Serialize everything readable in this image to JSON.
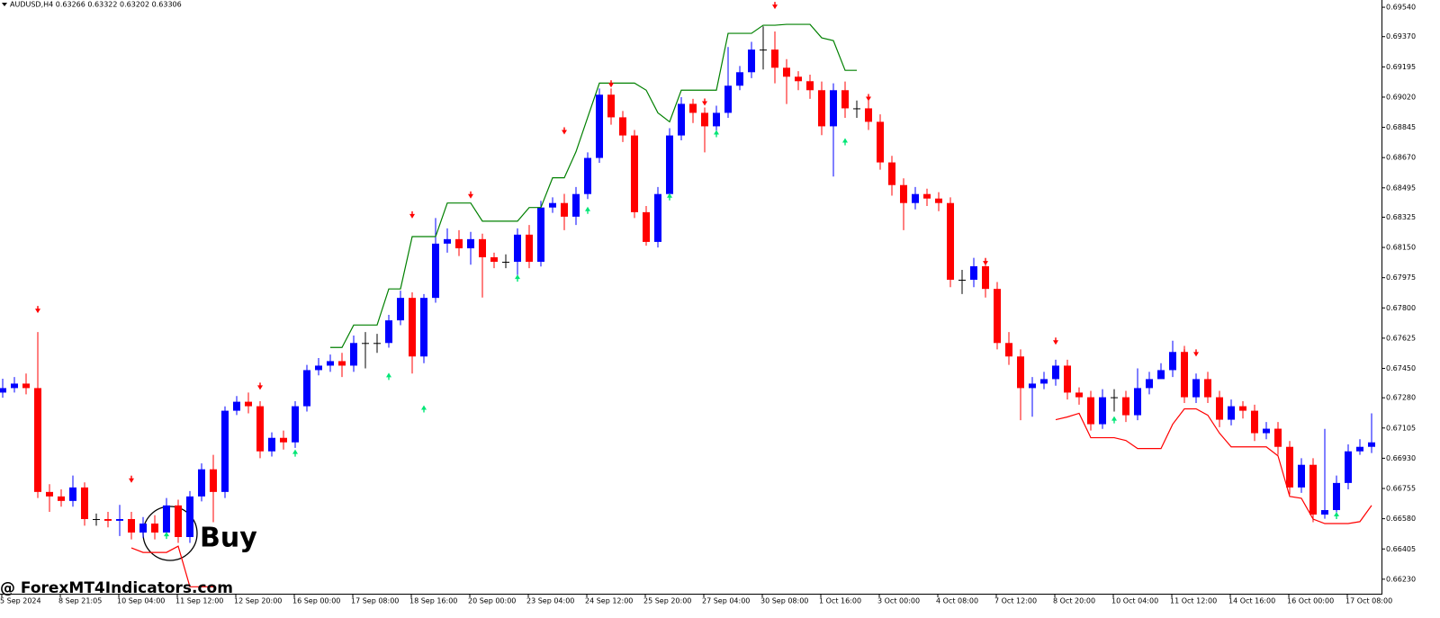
{
  "chart_data": {
    "type": "candlestick",
    "header": "AUDUSD,H4  0.63266 0.63322 0.63202 0.63306",
    "annotation": "Buy",
    "watermark": "@ ForexMT4Indicators.com",
    "up_color": "#0000ff",
    "down_color": "#ff0000",
    "ylim": [
      0.66146,
      0.69582
    ],
    "yticks": [
      {
        "value": 0.6954,
        "label": "0.69540"
      },
      {
        "value": 0.6937,
        "label": "0.69370"
      },
      {
        "value": 0.69195,
        "label": "0.69195"
      },
      {
        "value": 0.6902,
        "label": "0.69020"
      },
      {
        "value": 0.68845,
        "label": "0.68845"
      },
      {
        "value": 0.6867,
        "label": "0.68670"
      },
      {
        "value": 0.68495,
        "label": "0.68495"
      },
      {
        "value": 0.68325,
        "label": "0.68325"
      },
      {
        "value": 0.6815,
        "label": "0.68150"
      },
      {
        "value": 0.67975,
        "label": "0.67975"
      },
      {
        "value": 0.678,
        "label": "0.67800"
      },
      {
        "value": 0.67625,
        "label": "0.67625"
      },
      {
        "value": 0.6745,
        "label": "0.67450"
      },
      {
        "value": 0.6728,
        "label": "0.67280"
      },
      {
        "value": 0.67105,
        "label": "0.67105"
      },
      {
        "value": 0.6693,
        "label": "0.66930"
      },
      {
        "value": 0.66755,
        "label": "0.66755"
      },
      {
        "value": 0.6658,
        "label": "0.66580"
      },
      {
        "value": 0.66405,
        "label": "0.66405"
      },
      {
        "value": 0.6623,
        "label": "0.66230"
      }
    ],
    "x_labels": [
      "5 Sep 2024",
      "8 Sep 21:05",
      "10 Sep 04:00",
      "11 Sep 12:00",
      "12 Sep 20:00",
      "16 Sep 00:00",
      "17 Sep 08:00",
      "18 Sep 16:00",
      "20 Sep 00:00",
      "23 Sep 04:00",
      "24 Sep 12:00",
      "25 Sep 20:00",
      "27 Sep 04:00",
      "30 Sep 08:00",
      "1 Oct 16:00",
      "3 Oct 00:00",
      "4 Oct 08:00",
      "7 Oct 12:00",
      "8 Oct 20:00",
      "10 Oct 04:00",
      "11 Oct 12:00",
      "14 Oct 16:00",
      "16 Oct 00:00",
      "17 Oct 08:00"
    ],
    "open": [
      0.6731,
      0.67336,
      0.67362,
      0.67336,
      0.66735,
      0.66709,
      0.66683,
      0.66761,
      0.66578,
      0.66578,
      0.66568,
      0.66578,
      0.665,
      0.66552,
      0.665,
      0.66657,
      0.66474,
      0.66709,
      0.66866,
      0.66735,
      0.67205,
      0.67257,
      0.67231,
      0.6697,
      0.67048,
      0.67022,
      0.67231,
      0.6744,
      0.67466,
      0.67492,
      0.67466,
      0.67597,
      0.67597,
      0.67597,
      0.67728,
      0.67858,
      0.67519,
      0.67858,
      0.68172,
      0.68198,
      0.68145,
      0.68198,
      0.68093,
      0.68067,
      0.68067,
      0.68224,
      0.68067,
      0.68381,
      0.68407,
      0.68328,
      0.68459,
      0.68668,
      0.69034,
      0.68903,
      0.68798,
      0.68354,
      0.68182,
      0.68459,
      0.68798,
      0.68981,
      0.68929,
      0.68851,
      0.68929,
      0.69086,
      0.69164,
      0.69295,
      0.69295,
      0.6919,
      0.69138,
      0.69112,
      0.6906,
      0.68851,
      0.6906,
      0.68955,
      0.68955,
      0.68877,
      0.68642,
      0.68511,
      0.68407,
      0.68459,
      0.68433,
      0.68407,
      0.67963,
      0.67963,
      0.68041,
      0.6791,
      0.67597,
      0.67519,
      0.67336,
      0.67362,
      0.67388,
      0.67466,
      0.6731,
      0.67283,
      0.67127,
      0.67283,
      0.67283,
      0.67179,
      0.67336,
      0.67388,
      0.6744,
      0.67545,
      0.67283,
      0.67388,
      0.67283,
      0.67153,
      0.67231,
      0.67205,
      0.67075,
      0.67101,
      0.66996,
      0.66761,
      0.66892,
      0.66604,
      0.6663,
      0.66787,
      0.6697,
      0.66996
    ],
    "high": [
      0.6739,
      0.674,
      0.6742,
      0.6766,
      0.6678,
      0.6675,
      0.6683,
      0.6679,
      0.6661,
      0.6662,
      0.6666,
      0.6662,
      0.6659,
      0.666,
      0.667,
      0.6669,
      0.6674,
      0.669,
      0.6695,
      0.6723,
      0.6729,
      0.6731,
      0.6726,
      0.6708,
      0.6709,
      0.6726,
      0.6747,
      0.6751,
      0.6753,
      0.6754,
      0.6764,
      0.6766,
      0.6765,
      0.6776,
      0.679,
      0.6789,
      0.6788,
      0.6832,
      0.6826,
      0.6825,
      0.6824,
      0.6823,
      0.6812,
      0.6811,
      0.6826,
      0.6828,
      0.6842,
      0.6844,
      0.6846,
      0.685,
      0.687,
      0.6907,
      0.6907,
      0.6894,
      0.6883,
      0.6839,
      0.685,
      0.6884,
      0.6902,
      0.6901,
      0.6896,
      0.6897,
      0.6931,
      0.692,
      0.6934,
      0.6943,
      0.694,
      0.6924,
      0.6917,
      0.6915,
      0.6911,
      0.691,
      0.6911,
      0.69,
      0.69,
      0.6892,
      0.6868,
      0.6855,
      0.685,
      0.6849,
      0.6847,
      0.6844,
      0.6802,
      0.6809,
      0.6809,
      0.6795,
      0.6766,
      0.6756,
      0.674,
      0.6743,
      0.675,
      0.675,
      0.6734,
      0.6732,
      0.6733,
      0.6733,
      0.6732,
      0.6745,
      0.6743,
      0.6748,
      0.6761,
      0.6758,
      0.6742,
      0.6743,
      0.6732,
      0.6727,
      0.6726,
      0.6724,
      0.6714,
      0.6714,
      0.6703,
      0.6693,
      0.6693,
      0.671,
      0.6683,
      0.6701,
      0.6704,
      0.6719
    ],
    "low": [
      0.6728,
      0.6731,
      0.673,
      0.667,
      0.6662,
      0.6665,
      0.6665,
      0.6654,
      0.6654,
      0.6653,
      0.6648,
      0.6646,
      0.6647,
      0.6646,
      0.6647,
      0.6644,
      0.6644,
      0.6668,
      0.6656,
      0.667,
      0.6718,
      0.6719,
      0.6693,
      0.6694,
      0.6698,
      0.6699,
      0.672,
      0.6741,
      0.6743,
      0.674,
      0.6743,
      0.6745,
      0.6754,
      0.6757,
      0.677,
      0.6742,
      0.6748,
      0.6783,
      0.6812,
      0.681,
      0.6805,
      0.6786,
      0.6803,
      0.6803,
      0.6798,
      0.6803,
      0.6804,
      0.6835,
      0.6825,
      0.6828,
      0.6843,
      0.6864,
      0.6886,
      0.6876,
      0.6832,
      0.6816,
      0.6815,
      0.6843,
      0.6877,
      0.6887,
      0.687,
      0.688,
      0.689,
      0.6906,
      0.6913,
      0.6918,
      0.691,
      0.6898,
      0.6906,
      0.6901,
      0.688,
      0.6856,
      0.689,
      0.689,
      0.6883,
      0.686,
      0.6845,
      0.6825,
      0.6837,
      0.6839,
      0.6836,
      0.6792,
      0.6788,
      0.6792,
      0.6786,
      0.6756,
      0.6747,
      0.6715,
      0.6717,
      0.6733,
      0.6735,
      0.6727,
      0.6724,
      0.6709,
      0.671,
      0.672,
      0.6714,
      0.6715,
      0.673,
      0.674,
      0.674,
      0.6725,
      0.6725,
      0.6725,
      0.6711,
      0.6712,
      0.6716,
      0.6703,
      0.6704,
      0.6695,
      0.6672,
      0.6673,
      0.6656,
      0.6658,
      0.666,
      0.6675,
      0.6695,
      0.6696
    ],
    "close": [
      0.67336,
      0.67362,
      0.67336,
      0.66735,
      0.66709,
      0.66683,
      0.66761,
      0.66578,
      0.66578,
      0.66568,
      0.66578,
      0.665,
      0.66552,
      0.665,
      0.66657,
      0.66474,
      0.66709,
      0.66866,
      0.66735,
      0.67205,
      0.67257,
      0.67231,
      0.6697,
      0.67048,
      0.67022,
      0.67231,
      0.6744,
      0.67466,
      0.67492,
      0.67466,
      0.67597,
      0.67597,
      0.67597,
      0.67728,
      0.67858,
      0.67519,
      0.67858,
      0.68172,
      0.68198,
      0.68145,
      0.68198,
      0.68093,
      0.68067,
      0.68067,
      0.68224,
      0.68067,
      0.68381,
      0.68407,
      0.68328,
      0.68459,
      0.68668,
      0.69034,
      0.68903,
      0.68798,
      0.68354,
      0.68182,
      0.68459,
      0.68798,
      0.68981,
      0.68929,
      0.68851,
      0.68929,
      0.69086,
      0.69164,
      0.69295,
      0.69295,
      0.6919,
      0.69138,
      0.69112,
      0.6906,
      0.68851,
      0.6906,
      0.68955,
      0.68955,
      0.68877,
      0.68642,
      0.68511,
      0.68407,
      0.68459,
      0.68433,
      0.68407,
      0.67963,
      0.67963,
      0.68041,
      0.6791,
      0.67597,
      0.67519,
      0.67336,
      0.67362,
      0.67388,
      0.67466,
      0.6731,
      0.67283,
      0.67127,
      0.67283,
      0.67283,
      0.67179,
      0.67336,
      0.67388,
      0.6744,
      0.67545,
      0.67283,
      0.67388,
      0.67283,
      0.67153,
      0.67231,
      0.67205,
      0.67075,
      0.67101,
      0.66996,
      0.66761,
      0.66892,
      0.66604,
      0.6663,
      0.66787,
      0.6697,
      0.66996,
      0.67022
    ],
    "lines": [
      {
        "color": "#008000",
        "values": [
          null,
          null,
          null,
          null,
          null,
          null,
          null,
          null,
          null,
          null,
          null,
          null,
          null,
          null,
          null,
          null,
          null,
          null,
          null,
          null,
          null,
          null,
          null,
          null,
          null,
          null,
          null,
          null,
          0.67571,
          0.67571,
          0.67701,
          0.67701,
          0.67701,
          0.6791,
          0.6791,
          0.68213,
          0.68213,
          0.68213,
          0.68407,
          0.68407,
          0.68407,
          0.68302,
          0.68302,
          0.68302,
          0.68302,
          0.68381,
          0.68381,
          0.68553,
          0.68553,
          0.68704,
          0.68903,
          0.69101,
          0.69101,
          0.69101,
          0.69101,
          0.6906,
          0.68929,
          0.68877,
          0.6906,
          0.6906,
          0.6906,
          0.6906,
          0.69389,
          0.69389,
          0.69389,
          0.69436,
          0.69436,
          0.69441,
          0.69441,
          0.69441,
          0.69363,
          0.69347,
          0.69175,
          0.69175,
          null,
          null,
          null,
          null,
          null,
          null,
          null,
          null,
          null,
          null,
          null,
          null,
          null,
          null,
          null,
          null,
          null,
          null,
          null,
          null,
          null,
          null,
          null,
          null,
          null,
          null,
          null,
          null,
          null,
          null,
          null,
          null,
          null,
          null,
          null,
          null,
          null,
          null,
          null,
          null,
          null,
          null,
          null,
          null
        ]
      },
      {
        "color": "#ff0000",
        "values": [
          null,
          null,
          null,
          null,
          null,
          null,
          null,
          null,
          null,
          null,
          null,
          0.66411,
          0.66385,
          0.66385,
          0.66385,
          0.66421,
          0.66186,
          0.66186,
          0.66186,
          null,
          null,
          null,
          null,
          null,
          null,
          null,
          null,
          null,
          null,
          null,
          null,
          null,
          null,
          null,
          null,
          null,
          null,
          null,
          null,
          null,
          null,
          null,
          null,
          null,
          null,
          null,
          null,
          null,
          null,
          null,
          null,
          null,
          null,
          null,
          null,
          null,
          null,
          null,
          null,
          null,
          null,
          null,
          null,
          null,
          null,
          null,
          null,
          null,
          null,
          null,
          null,
          null,
          null,
          null,
          null,
          null,
          null,
          null,
          null,
          null,
          null,
          null,
          null,
          null,
          null,
          null,
          null,
          null,
          null,
          null,
          0.67153,
          0.67169,
          0.6719,
          0.67049,
          0.67049,
          0.67049,
          0.67033,
          0.66986,
          0.66986,
          0.66986,
          0.67127,
          0.67216,
          0.67216,
          0.67179,
          0.67075,
          0.66996,
          0.66996,
          0.66996,
          0.66996,
          0.66944,
          0.66709,
          0.66698,
          0.66578,
          0.66552,
          0.66552,
          0.66552,
          0.66563,
          0.66657
        ]
      }
    ],
    "arrows": [
      {
        "direction": "down",
        "color": "#ff0000",
        "values": [
          null,
          null,
          null,
          0.6778,
          null,
          null,
          null,
          null,
          null,
          null,
          null,
          0.66798,
          null,
          null,
          null,
          null,
          null,
          null,
          null,
          null,
          null,
          null,
          0.67336,
          null,
          null,
          null,
          null,
          null,
          null,
          null,
          null,
          null,
          null,
          null,
          null,
          0.68328,
          null,
          null,
          null,
          null,
          0.68443,
          null,
          null,
          null,
          null,
          null,
          null,
          null,
          0.68814,
          null,
          null,
          null,
          0.69086,
          null,
          null,
          null,
          null,
          null,
          null,
          null,
          0.68981,
          null,
          null,
          null,
          null,
          null,
          0.6954,
          null,
          null,
          null,
          null,
          null,
          null,
          null,
          0.69007,
          null,
          null,
          null,
          null,
          null,
          null,
          null,
          null,
          null,
          0.68056,
          null,
          null,
          null,
          null,
          null,
          0.67597,
          null,
          null,
          null,
          null,
          null,
          null,
          null,
          null,
          null,
          null,
          0.67529,
          0.67529,
          null,
          null,
          null,
          null,
          null,
          null,
          null,
          null,
          null,
          null,
          null,
          null,
          null,
          null,
          null
        ]
      },
      {
        "direction": "up",
        "color": "#00e676",
        "values": [
          null,
          null,
          null,
          null,
          null,
          null,
          null,
          null,
          null,
          null,
          null,
          null,
          null,
          null,
          0.66484,
          null,
          null,
          null,
          null,
          null,
          null,
          null,
          null,
          null,
          null,
          0.6696,
          null,
          null,
          null,
          null,
          null,
          null,
          null,
          0.67404,
          null,
          null,
          0.67216,
          null,
          null,
          null,
          null,
          null,
          null,
          null,
          0.67973,
          null,
          null,
          null,
          null,
          null,
          0.68365,
          null,
          null,
          null,
          null,
          null,
          null,
          0.68443,
          null,
          null,
          null,
          0.68809,
          null,
          null,
          null,
          null,
          null,
          null,
          null,
          null,
          null,
          null,
          0.68762,
          null,
          null,
          null,
          null,
          null,
          null,
          null,
          null,
          null,
          null,
          null,
          null,
          null,
          null,
          null,
          null,
          null,
          null,
          null,
          null,
          null,
          null,
          0.67153,
          null,
          null,
          null,
          null,
          null,
          null,
          null,
          null,
          null,
          null,
          null,
          null,
          null,
          null,
          null,
          null,
          null,
          null,
          0.66599,
          null,
          null,
          null
        ]
      }
    ]
  }
}
